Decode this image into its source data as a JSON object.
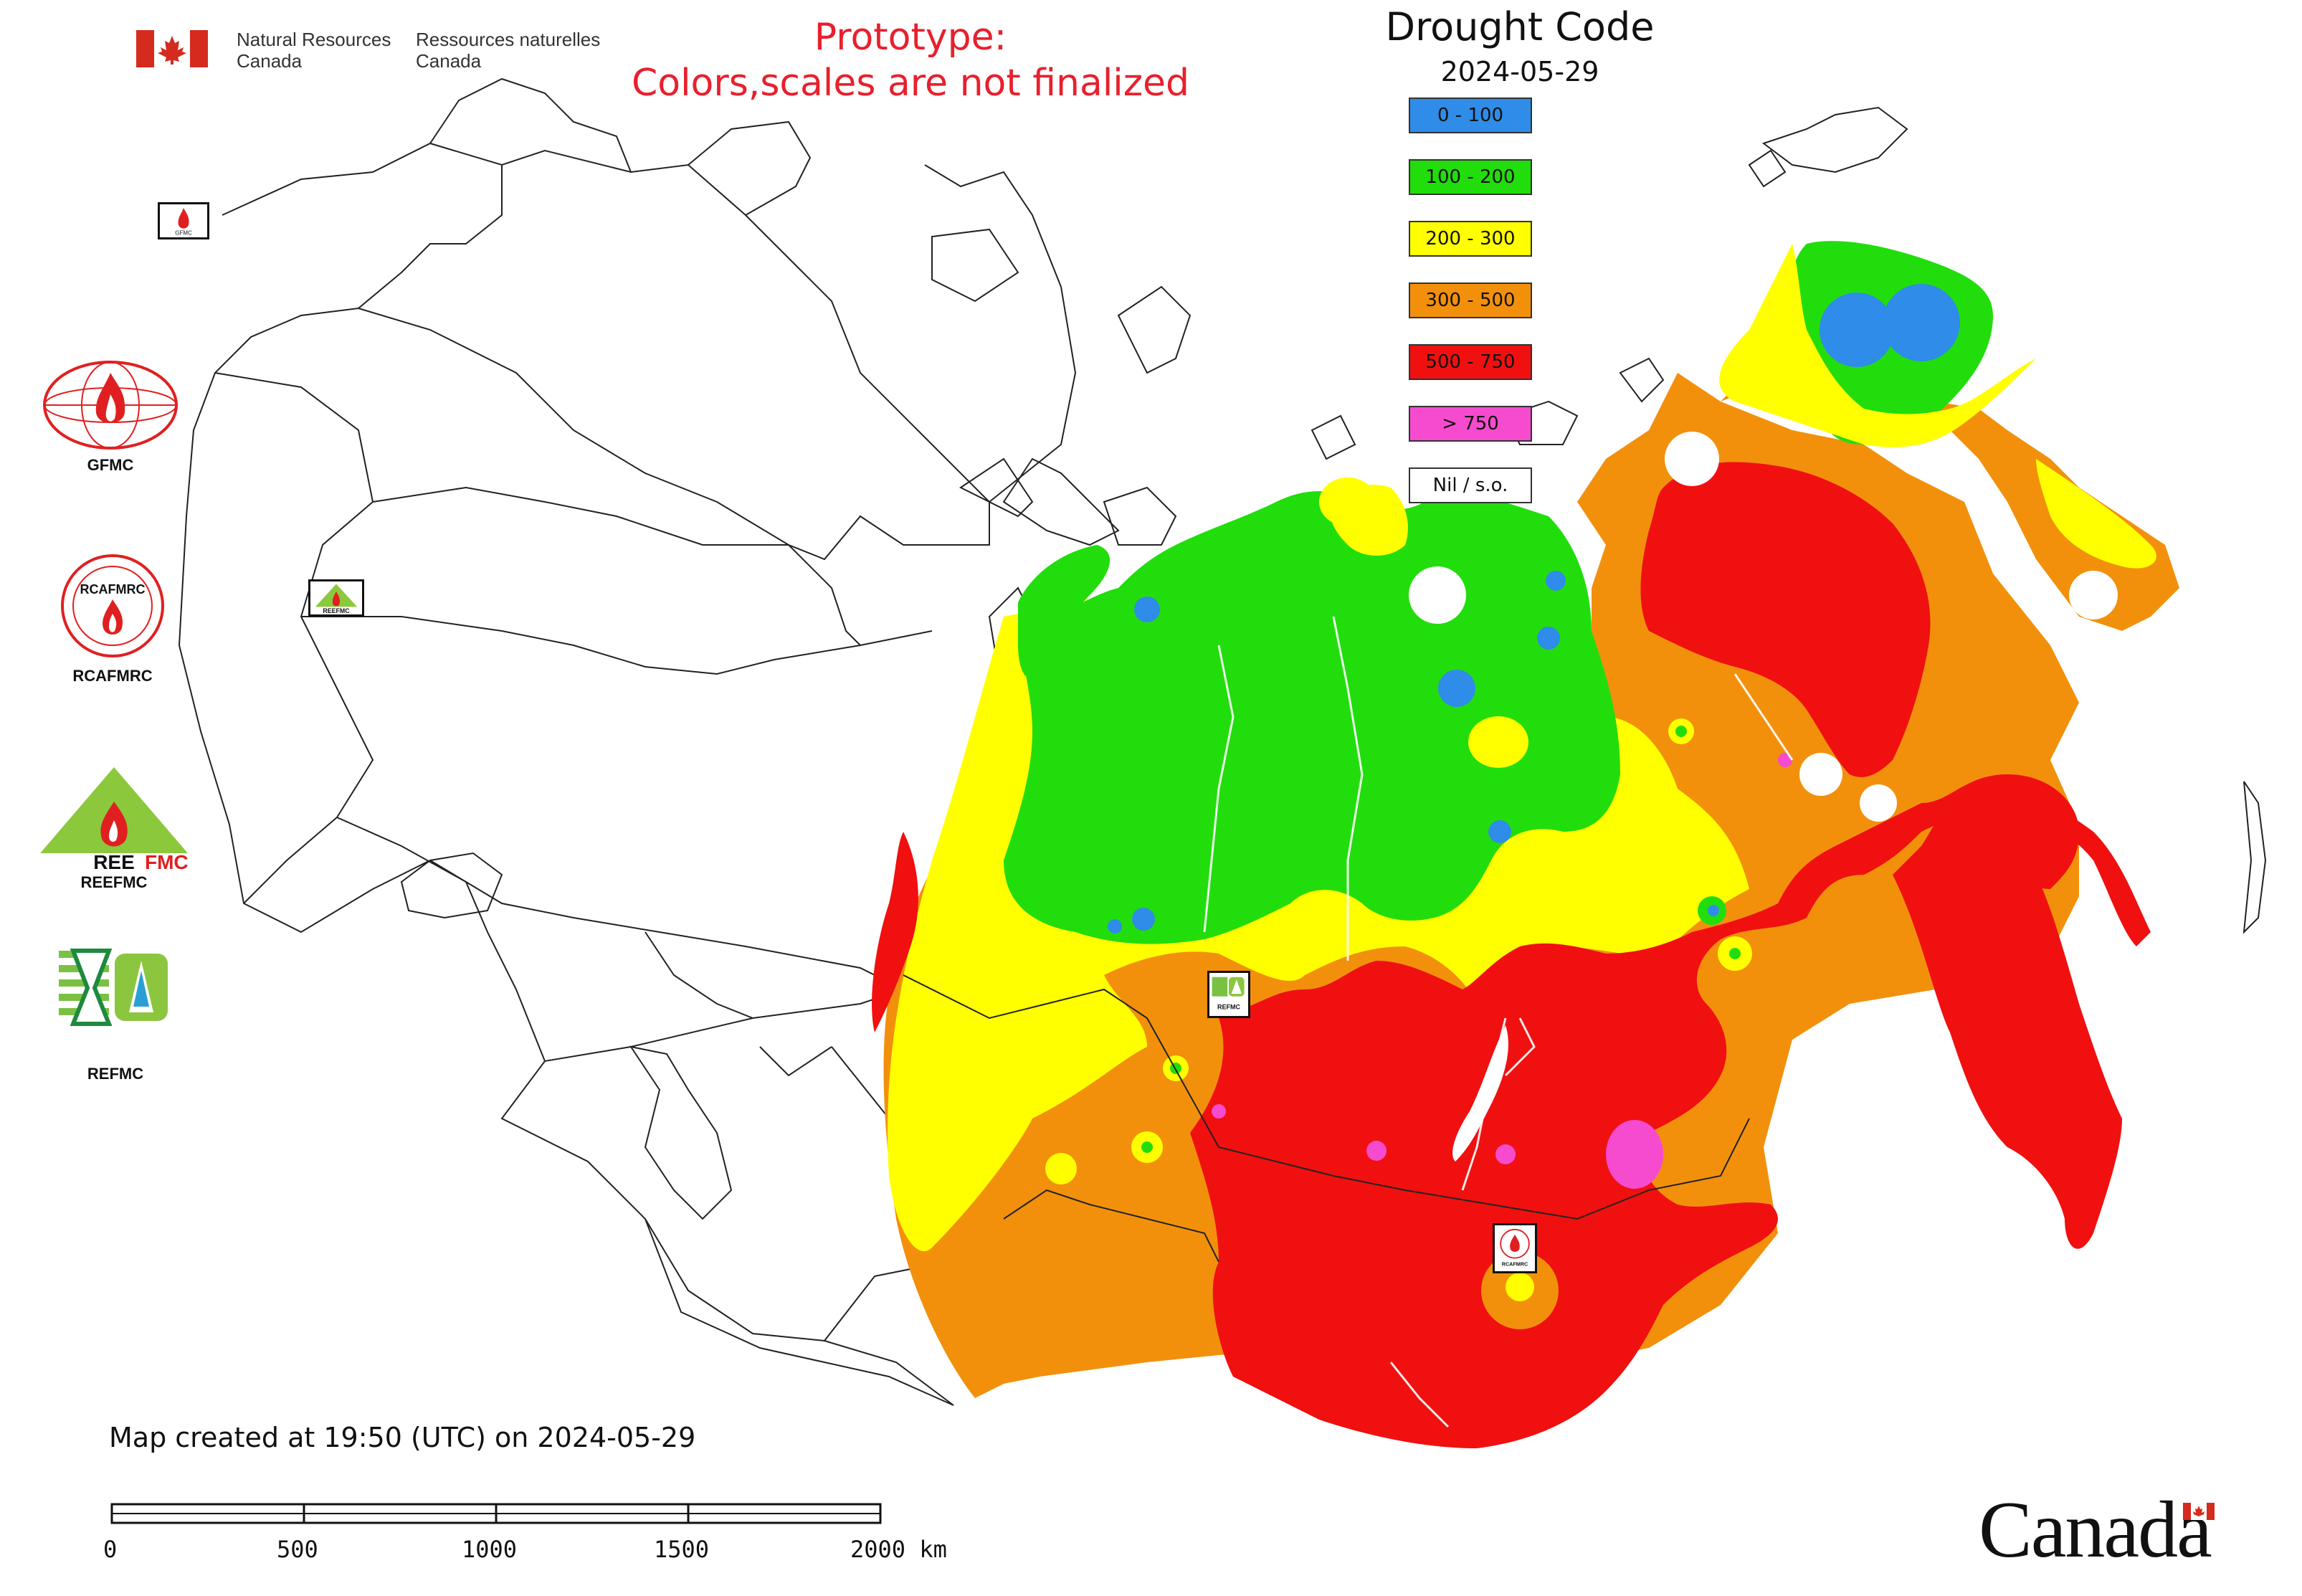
{
  "header": {
    "gov_en_line1": "Natural Resources",
    "gov_en_line2": "Canada",
    "gov_fr_line1": "Ressources naturelles",
    "gov_fr_line2": "Canada",
    "prototype_line1": "Prototype:",
    "prototype_line2": "Colors,scales are not finalized"
  },
  "legend": {
    "title": "Drought Code",
    "date": "2024-05-29",
    "items": [
      {
        "label": "0 - 100",
        "color": "#2f8ce8"
      },
      {
        "label": "100 - 200",
        "color": "#22dd0c"
      },
      {
        "label": "200 - 300",
        "color": "#ffff00"
      },
      {
        "label": "300 - 500",
        "color": "#f2900c"
      },
      {
        "label": "500 - 750",
        "color": "#f01010"
      },
      {
        "label": "> 750",
        "color": "#f64bcf"
      },
      {
        "label": "Nil / s.o.",
        "color": "#ffffff"
      }
    ]
  },
  "logos": [
    {
      "label": "GFMC"
    },
    {
      "label": "RCAFMRC"
    },
    {
      "label": "REEFMC"
    },
    {
      "label": "REFMC"
    }
  ],
  "map_markers": {
    "gfmc_small": "GFMC",
    "reefmc_small": "REEFMC",
    "refmc_small": "REFMC",
    "rcafmrc_small": "RCAFMRC"
  },
  "footer": {
    "created": "Map created at 19:50 (UTC) on 2024-05-29",
    "scale_labels": [
      "0",
      "500",
      "1000",
      "1500",
      "2000 km"
    ]
  },
  "wordmark": "Canada",
  "colors": {
    "water_blue": "#2f8ce8",
    "green": "#22dd0c",
    "yellow": "#ffff00",
    "orange": "#f2900c",
    "red": "#f01010",
    "magenta": "#f64bcf",
    "flag_red": "#d52b1e",
    "prototype_red": "#e8202d"
  }
}
